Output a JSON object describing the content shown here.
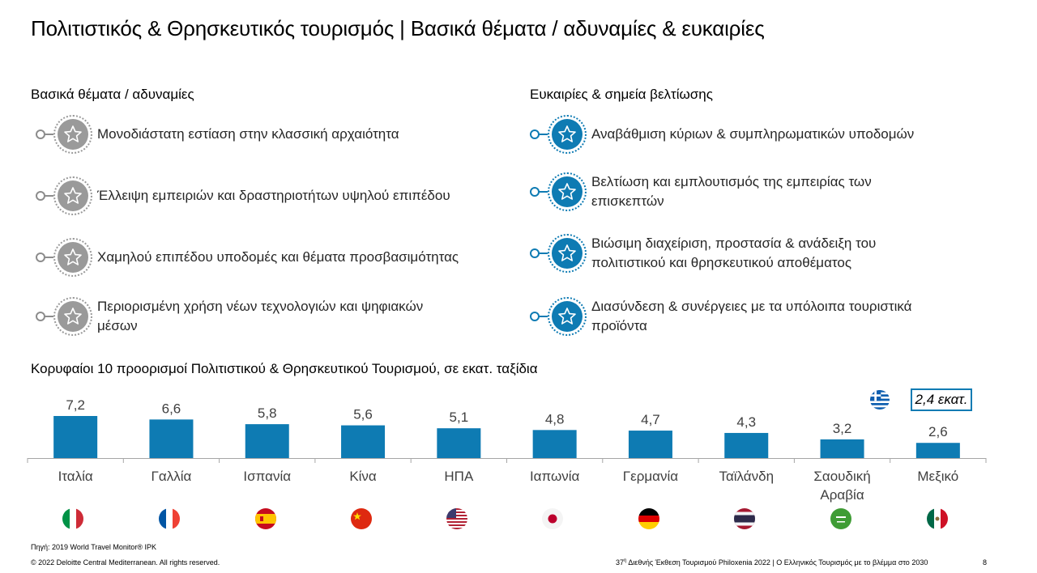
{
  "title": "Πολιτιστικός & Θρησκευτικός τουρισμός | Βασικά θέματα / αδυναμίες & ευκαιρίες",
  "weaknesses": {
    "heading": "Βασικά θέματα / αδυναμίες",
    "items": [
      {
        "text": "Μονοδιάστατη εστίαση στην κλασσική αρχαιότητα"
      },
      {
        "text": "Έλλειψη εμπειριών και δραστηριοτήτων υψηλού επιπέδου"
      },
      {
        "text": "Χαμηλού επιπέδου υποδομές και θέματα προσβασιμότητας"
      },
      {
        "text": "Περιορισμένη χρήση νέων τεχνολογιών και ψηφιακών μέσων"
      }
    ]
  },
  "opportunities": {
    "heading": "Ευκαιρίες & σημεία βελτίωσης",
    "items": [
      {
        "text": "Αναβάθμιση κύριων & συμπληρωματικών υποδομών"
      },
      {
        "text": "Βελτίωση και εμπλουτισμός της εμπειρίας των επισκεπτών"
      },
      {
        "text": "Βιώσιμη διαχείριση, προστασία & ανάδειξη του πολιτιστικού και θρησκευτικού αποθέματος"
      },
      {
        "text": "Διασύνδεση & συνέργειες με τα υπόλοιπα τουριστικά προϊόντα"
      }
    ]
  },
  "chart_title": "Κορυφαίοι 10 προορισμοί Πολιτιστικού & Θρησκευτικού Τουρισμού, σε εκατ. ταξίδια",
  "chart_data": {
    "type": "bar",
    "categories": [
      "Ιταλία",
      "Γαλλία",
      "Ισπανία",
      "Κίνα",
      "ΗΠΑ",
      "Ιαπωνία",
      "Γερμανία",
      "Ταϊλάνδη",
      "Σαουδική Αραβία",
      "Μεξικό"
    ],
    "values": [
      7.2,
      6.6,
      5.8,
      5.6,
      5.1,
      4.8,
      4.7,
      4.3,
      3.2,
      2.6
    ],
    "value_labels": [
      "7,2",
      "6,6",
      "5,8",
      "5,6",
      "5,1",
      "4,8",
      "4,7",
      "4,3",
      "3,2",
      "2,6"
    ],
    "bar_color": "#0e7bb3",
    "grid": false,
    "legend": "none"
  },
  "greece_callout": "2,4 εκατ.",
  "flags": [
    "italy-flag-icon",
    "france-flag-icon",
    "spain-flag-icon",
    "china-flag-icon",
    "usa-flag-icon",
    "japan-flag-icon",
    "germany-flag-icon",
    "thailand-flag-icon",
    "saudi-arabia-flag-icon",
    "mexico-flag-icon"
  ],
  "footer": {
    "source": "Πηγή: 2019 World Travel Monitor® IPK",
    "copyright": "© 2022 Deloitte Central Mediterranean. All rights reserved.",
    "event_prefix": "37",
    "event_sup": "η",
    "event_text": " Διεθνής Έκθεση Τουρισμού Philoxenia 2022 | Ο Ελληνικός Τουρισμός με το βλέμμα στο 2030",
    "page_number": "8"
  },
  "colors": {
    "accent": "#0e7bb3",
    "gray_icon": "#9a9a9a"
  }
}
